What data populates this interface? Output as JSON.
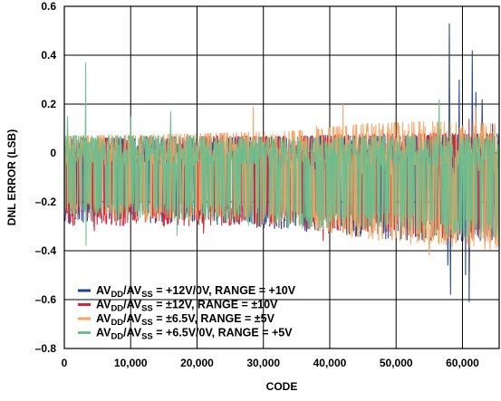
{
  "chart_data": {
    "type": "line",
    "title": "",
    "xlabel": "CODE",
    "ylabel": "DNL ERROR (LSB)",
    "xlim": [
      0,
      65535
    ],
    "ylim": [
      -0.8,
      0.6
    ],
    "x_ticks": [
      0,
      10000,
      20000,
      30000,
      40000,
      50000,
      60000
    ],
    "x_tick_labels": [
      "0",
      "10,000",
      "20,000",
      "30,000",
      "40,000",
      "50,000",
      "60,000"
    ],
    "y_ticks": [
      -0.8,
      -0.6,
      -0.4,
      -0.2,
      0,
      0.2,
      0.4,
      0.6
    ],
    "y_tick_labels": [
      "–0.8",
      "–0.6",
      "–0.4",
      "–0.2",
      "0",
      "0.2",
      "0.4",
      "0.6"
    ],
    "grid": true,
    "legend_position": "bottom-left",
    "series": [
      {
        "name": "AV_DD/AV_SS = +12V/0V, RANGE = +10V",
        "legend_parts": [
          "AV",
          "DD",
          "/AV",
          "SS",
          " = +12V/0V, RANGE = +10V"
        ],
        "color": "#1f3f8f",
        "band": [
          [
            0,
            -0.29,
            0.06
          ],
          [
            20000,
            -0.29,
            0.06
          ],
          [
            35000,
            -0.32,
            0.07
          ],
          [
            50000,
            -0.36,
            0.07
          ],
          [
            65535,
            -0.37,
            0.08
          ]
        ],
        "spikes": [
          [
            58000,
            0.53
          ],
          [
            58200,
            -0.58
          ],
          [
            61000,
            -0.61
          ],
          [
            61500,
            0.42
          ],
          [
            62000,
            0.25
          ],
          [
            63000,
            0.22
          ],
          [
            60500,
            -0.5
          ],
          [
            57800,
            -0.46
          ],
          [
            59500,
            0.3
          ],
          [
            64500,
            0.12
          ]
        ]
      },
      {
        "name": "AV_DD/AV_SS = ±12V, RANGE = ±10V",
        "legend_parts": [
          "AV",
          "DD",
          "/AV",
          "SS",
          " = ±12V, RANGE = ±10V"
        ],
        "color": "#d9213a",
        "band": [
          [
            0,
            -0.3,
            0.06
          ],
          [
            20000,
            -0.3,
            0.07
          ],
          [
            35000,
            -0.31,
            0.07
          ],
          [
            50000,
            -0.34,
            0.08
          ],
          [
            65535,
            -0.36,
            0.08
          ]
        ],
        "spikes": [
          [
            4500,
            -0.32
          ],
          [
            21000,
            -0.33
          ],
          [
            39000,
            -0.36
          ],
          [
            48000,
            0.11
          ],
          [
            61000,
            0.14
          ]
        ]
      },
      {
        "name": "AV_DD/AV_SS = ±6.5V, RANGE = ±5V",
        "legend_parts": [
          "AV",
          "DD",
          "/AV",
          "SS",
          " = ±6.5V, RANGE = ±5V"
        ],
        "color": "#f4a460",
        "band": [
          [
            0,
            -0.28,
            0.07
          ],
          [
            20000,
            -0.28,
            0.08
          ],
          [
            35000,
            -0.3,
            0.09
          ],
          [
            45000,
            -0.36,
            0.12
          ],
          [
            55000,
            -0.38,
            0.13
          ],
          [
            65535,
            -0.4,
            0.12
          ]
        ],
        "spikes": [
          [
            28500,
            0.19
          ],
          [
            38000,
            0.11
          ],
          [
            42000,
            0.2
          ],
          [
            48000,
            0.12
          ],
          [
            55000,
            -0.42
          ],
          [
            62000,
            0.19
          ]
        ]
      },
      {
        "name": "AV_DD/AV_SS = +6.5V/0V, RANGE = +5V",
        "legend_parts": [
          "AV",
          "DD",
          "/AV",
          "SS",
          " = +6.5V/0V, RANGE = +5V"
        ],
        "color": "#6bbf8e",
        "band": [
          [
            0,
            -0.27,
            0.07
          ],
          [
            20000,
            -0.29,
            0.07
          ],
          [
            35000,
            -0.31,
            0.06
          ],
          [
            50000,
            -0.32,
            0.07
          ],
          [
            65535,
            -0.36,
            0.07
          ]
        ],
        "spikes": [
          [
            3200,
            0.37
          ],
          [
            3300,
            -0.38
          ],
          [
            10000,
            0.15
          ],
          [
            16000,
            0.17
          ],
          [
            17000,
            -0.34
          ],
          [
            500,
            0.15
          ],
          [
            56500,
            0.22
          ]
        ]
      }
    ]
  }
}
